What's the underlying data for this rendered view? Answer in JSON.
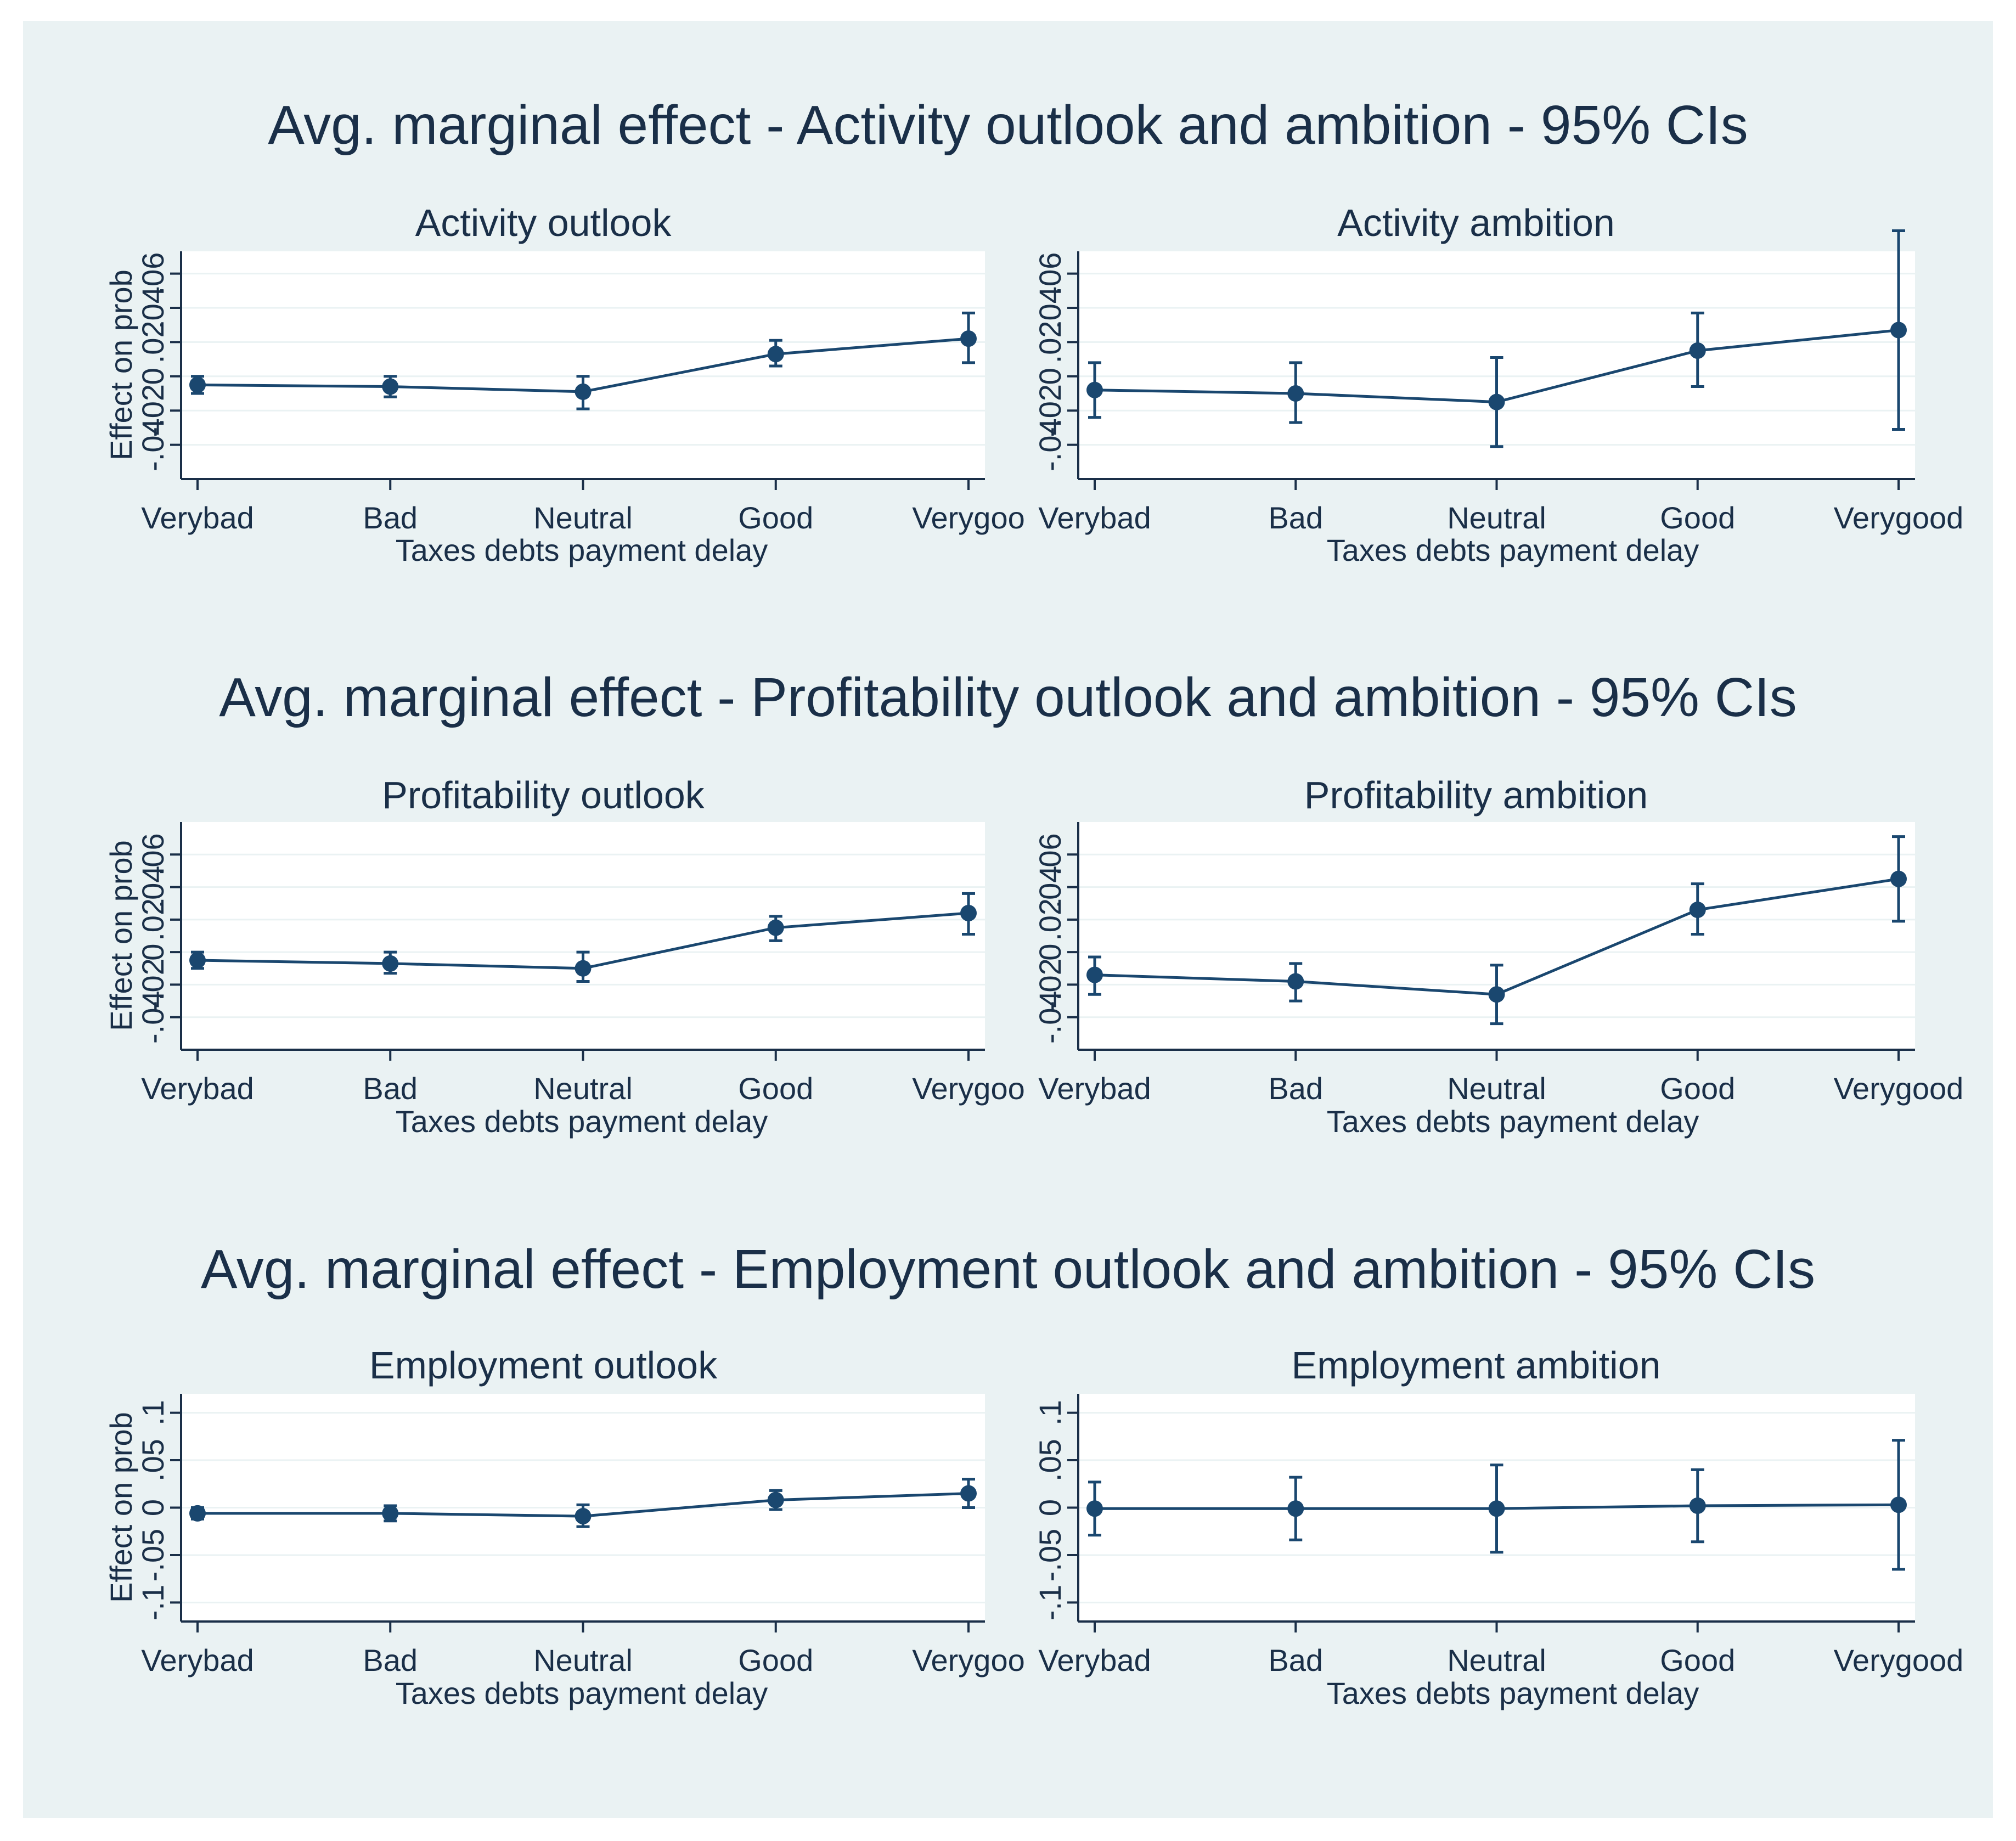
{
  "colors": {
    "outer_background": "#eaf2f3",
    "plot_background": "#ffffff",
    "grid": "#eaf2f3",
    "axis": "#1a2f48",
    "text": "#1a2f48",
    "series": "#1a476f"
  },
  "rows": [
    {
      "title": "Avg. marginal effect - Activity outlook and ambition - 95% CIs",
      "panels": [
        {
          "title": "Activity outlook",
          "ylabel": "Effect on prob",
          "xlabel": "Taxes debts payment delay",
          "yticks": [
            -0.04,
            -0.02,
            0,
            0.02,
            0.04,
            0.06
          ],
          "ytick_labels": [
            "-.04",
            "-.02",
            "0",
            ".02",
            ".04",
            ".06"
          ],
          "categories": [
            "Verybad",
            "Bad",
            "Neutral",
            "Good",
            "Verygood"
          ],
          "category_labels": [
            "Verybad",
            "Bad",
            "Neutral",
            "Good",
            "Verygoo"
          ]
        },
        {
          "title": "Activity ambition",
          "ylabel": "",
          "xlabel": "Taxes debts payment delay",
          "yticks": [
            -0.04,
            -0.02,
            0,
            0.02,
            0.04,
            0.06
          ],
          "ytick_labels": [
            "-.04",
            "-.02",
            "0",
            ".02",
            ".04",
            ".06"
          ],
          "categories": [
            "Verybad",
            "Bad",
            "Neutral",
            "Good",
            "Verygood"
          ],
          "category_labels": [
            "Verybad",
            "Bad",
            "Neutral",
            "Good",
            "Verygood"
          ]
        }
      ]
    },
    {
      "title": "Avg. marginal effect - Profitability outlook and ambition - 95% CIs",
      "panels": [
        {
          "title": "Profitability outlook",
          "ylabel": "Effect on prob",
          "xlabel": "Taxes debts payment delay",
          "yticks": [
            -0.04,
            -0.02,
            0,
            0.02,
            0.04,
            0.06
          ],
          "ytick_labels": [
            "-.04",
            "-.02",
            "0",
            ".02",
            ".04",
            ".06"
          ],
          "categories": [
            "Verybad",
            "Bad",
            "Neutral",
            "Good",
            "Verygood"
          ],
          "category_labels": [
            "Verybad",
            "Bad",
            "Neutral",
            "Good",
            "Verygoo"
          ]
        },
        {
          "title": "Profitability ambition",
          "ylabel": "",
          "xlabel": "Taxes debts payment delay",
          "yticks": [
            -0.04,
            -0.02,
            0,
            0.02,
            0.04,
            0.06
          ],
          "ytick_labels": [
            "-.04",
            "-.02",
            "0",
            ".02",
            ".04",
            ".06"
          ],
          "categories": [
            "Verybad",
            "Bad",
            "Neutral",
            "Good",
            "Verygood"
          ],
          "category_labels": [
            "Verybad",
            "Bad",
            "Neutral",
            "Good",
            "Verygood"
          ]
        }
      ]
    },
    {
      "title": "Avg. marginal effect - Employment outlook and ambition - 95% CIs",
      "panels": [
        {
          "title": "Employment outlook",
          "ylabel": "Effect on prob",
          "xlabel": "Taxes debts payment delay",
          "yticks": [
            -0.1,
            -0.05,
            0,
            0.05,
            0.1
          ],
          "ytick_labels": [
            "-.1",
            "-.05",
            "0",
            ".05",
            ".1"
          ],
          "categories": [
            "Verybad",
            "Bad",
            "Neutral",
            "Good",
            "Verygood"
          ],
          "category_labels": [
            "Verybad",
            "Bad",
            "Neutral",
            "Good",
            "Verygoo"
          ]
        },
        {
          "title": "Employment ambition",
          "ylabel": "",
          "xlabel": "Taxes debts payment delay",
          "yticks": [
            -0.1,
            -0.05,
            0,
            0.05,
            0.1
          ],
          "ytick_labels": [
            "-.1",
            "-.05",
            "0",
            ".05",
            ".1"
          ],
          "categories": [
            "Verybad",
            "Bad",
            "Neutral",
            "Good",
            "Verygood"
          ],
          "category_labels": [
            "Verybad",
            "Bad",
            "Neutral",
            "Good",
            "Verygood"
          ]
        }
      ]
    }
  ],
  "chart_data": [
    {
      "type": "line",
      "subtype": "point-estimate with 95% CI",
      "title": "Activity outlook",
      "suptitle": "Avg. marginal effect - Activity outlook and ambition - 95% CIs",
      "xlabel": "Taxes debts payment delay",
      "ylabel": "Effect on prob",
      "categories": [
        "Verybad",
        "Bad",
        "Neutral",
        "Good",
        "Verygood"
      ],
      "values": [
        -0.005,
        -0.006,
        -0.009,
        0.013,
        0.022
      ],
      "ci_low": [
        -0.01,
        -0.012,
        -0.019,
        0.006,
        0.008
      ],
      "ci_high": [
        0.0,
        0.0,
        0.0,
        0.021,
        0.037
      ],
      "ylim": [
        -0.06,
        0.073
      ],
      "grid": true
    },
    {
      "type": "line",
      "subtype": "point-estimate with 95% CI",
      "title": "Activity ambition",
      "suptitle": "Avg. marginal effect - Activity outlook and ambition - 95% CIs",
      "xlabel": "Taxes debts payment delay",
      "ylabel": "",
      "categories": [
        "Verybad",
        "Bad",
        "Neutral",
        "Good",
        "Verygood"
      ],
      "values": [
        -0.008,
        -0.01,
        -0.015,
        0.015,
        0.027
      ],
      "ci_low": [
        -0.024,
        -0.027,
        -0.041,
        -0.006,
        -0.031
      ],
      "ci_high": [
        0.008,
        0.008,
        0.011,
        0.037,
        0.085
      ],
      "ylim": [
        -0.06,
        0.073
      ],
      "grid": true
    },
    {
      "type": "line",
      "subtype": "point-estimate with 95% CI",
      "title": "Profitability outlook",
      "suptitle": "Avg. marginal effect - Profitability outlook and ambition - 95% CIs",
      "xlabel": "Taxes debts payment delay",
      "ylabel": "Effect on prob",
      "categories": [
        "Verybad",
        "Bad",
        "Neutral",
        "Good",
        "Verygood"
      ],
      "values": [
        -0.005,
        -0.007,
        -0.01,
        0.015,
        0.024
      ],
      "ci_low": [
        -0.01,
        -0.013,
        -0.018,
        0.007,
        0.011
      ],
      "ci_high": [
        0.0,
        0.0,
        0.0,
        0.022,
        0.036
      ],
      "ylim": [
        -0.06,
        0.08
      ],
      "grid": true
    },
    {
      "type": "line",
      "subtype": "point-estimate with 95% CI",
      "title": "Profitability ambition",
      "suptitle": "Avg. marginal effect - Profitability outlook and ambition - 95% CIs",
      "xlabel": "Taxes debts payment delay",
      "ylabel": "",
      "categories": [
        "Verybad",
        "Bad",
        "Neutral",
        "Good",
        "Verygood"
      ],
      "values": [
        -0.014,
        -0.018,
        -0.026,
        0.026,
        0.045
      ],
      "ci_low": [
        -0.026,
        -0.03,
        -0.044,
        0.011,
        0.019
      ],
      "ci_high": [
        -0.003,
        -0.007,
        -0.008,
        0.042,
        0.071
      ],
      "ylim": [
        -0.06,
        0.08
      ],
      "grid": true
    },
    {
      "type": "line",
      "subtype": "point-estimate with 95% CI",
      "title": "Employment outlook",
      "suptitle": "Avg. marginal effect - Employment outlook and ambition - 95% CIs",
      "xlabel": "Taxes debts payment delay",
      "ylabel": "Effect on prob",
      "categories": [
        "Verybad",
        "Bad",
        "Neutral",
        "Good",
        "Verygood"
      ],
      "values": [
        -0.006,
        -0.006,
        -0.009,
        0.008,
        0.015
      ],
      "ci_low": [
        -0.012,
        -0.014,
        -0.02,
        -0.002,
        0.0
      ],
      "ci_high": [
        0.0,
        0.002,
        0.003,
        0.018,
        0.03
      ],
      "ylim": [
        -0.12,
        0.12
      ],
      "grid": true
    },
    {
      "type": "line",
      "subtype": "point-estimate with 95% CI",
      "title": "Employment ambition",
      "suptitle": "Avg. marginal effect - Employment outlook and ambition - 95% CIs",
      "xlabel": "Taxes debts payment delay",
      "ylabel": "",
      "categories": [
        "Verybad",
        "Bad",
        "Neutral",
        "Good",
        "Verygood"
      ],
      "values": [
        -0.001,
        -0.001,
        -0.001,
        0.002,
        0.003
      ],
      "ci_low": [
        -0.029,
        -0.034,
        -0.047,
        -0.036,
        -0.065
      ],
      "ci_high": [
        0.027,
        0.032,
        0.045,
        0.04,
        0.071
      ],
      "ylim": [
        -0.12,
        0.12
      ],
      "grid": true
    }
  ]
}
